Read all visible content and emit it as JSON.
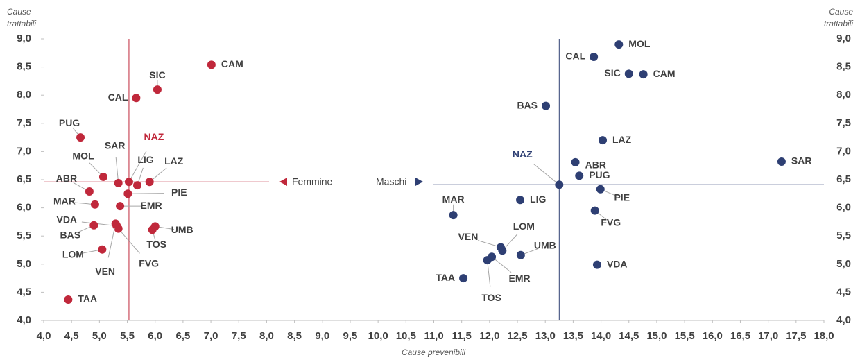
{
  "chart_data": {
    "type": "scatter",
    "xlabel": "Cause prevenibili",
    "ylabel": [
      "Cause",
      "trattabili"
    ],
    "y2label": [
      "Cause",
      "trattabili"
    ],
    "xlim": [
      4,
      18
    ],
    "ylim": [
      4,
      9
    ],
    "y2lim": [
      4,
      9
    ],
    "xticks": [
      {
        "value": 4,
        "label": "4,0"
      },
      {
        "value": 4.5,
        "label": "4,5"
      },
      {
        "value": 5,
        "label": "5,0"
      },
      {
        "value": 5.5,
        "label": "5,5"
      },
      {
        "value": 6,
        "label": "6,0"
      },
      {
        "value": 6.5,
        "label": "6,5"
      },
      {
        "value": 7,
        "label": "7,0"
      },
      {
        "value": 7.5,
        "label": "7,5"
      },
      {
        "value": 8,
        "label": "8,0"
      },
      {
        "value": 8.5,
        "label": "8,5"
      },
      {
        "value": 9,
        "label": "9,0"
      },
      {
        "value": 9.5,
        "label": "9,5"
      },
      {
        "value": 10,
        "label": "10,0"
      },
      {
        "value": 10.5,
        "label": "10,5"
      },
      {
        "value": 11,
        "label": "11,0"
      },
      {
        "value": 11.5,
        "label": "11,5"
      },
      {
        "value": 12,
        "label": "12,0"
      },
      {
        "value": 12.5,
        "label": "12,5"
      },
      {
        "value": 13,
        "label": "13,0"
      },
      {
        "value": 13.5,
        "label": "13,5"
      },
      {
        "value": 14,
        "label": "14,0"
      },
      {
        "value": 14.5,
        "label": "14,5"
      },
      {
        "value": 15,
        "label": "15,0"
      },
      {
        "value": 15.5,
        "label": "15,5"
      },
      {
        "value": 16,
        "label": "16,0"
      },
      {
        "value": 16.5,
        "label": "16,5"
      },
      {
        "value": 17,
        "label": "17,0"
      },
      {
        "value": 17.5,
        "label": "17,5"
      },
      {
        "value": 18,
        "label": "18,0"
      }
    ],
    "yticks": [
      {
        "value": 4,
        "label": "4,0"
      },
      {
        "value": 4.5,
        "label": "4,5"
      },
      {
        "value": 5,
        "label": "5,0"
      },
      {
        "value": 5.5,
        "label": "5,5"
      },
      {
        "value": 6,
        "label": "6,0"
      },
      {
        "value": 6.5,
        "label": "6,5"
      },
      {
        "value": 7,
        "label": "7,0"
      },
      {
        "value": 7.5,
        "label": "7,5"
      },
      {
        "value": 8,
        "label": "8,0"
      },
      {
        "value": 8.5,
        "label": "8,5"
      },
      {
        "value": 9,
        "label": "9,0"
      }
    ],
    "y2ticks": [
      {
        "value": 4,
        "label": "4,0"
      },
      {
        "value": 4.5,
        "label": "4,5"
      },
      {
        "value": 5,
        "label": "5,0"
      },
      {
        "value": 5.5,
        "label": "5,5"
      },
      {
        "value": 6,
        "label": "6,0"
      },
      {
        "value": 6.5,
        "label": "6,5"
      },
      {
        "value": 7,
        "label": "7,0"
      },
      {
        "value": 7.5,
        "label": "7,5"
      },
      {
        "value": 8,
        "label": "8,0"
      },
      {
        "value": 8.5,
        "label": "8,5"
      },
      {
        "value": 9,
        "label": "9,0"
      }
    ],
    "series": [
      {
        "name": "Femmine",
        "color": "#c0283b",
        "labels": [
          "CAM",
          "SIC",
          "CAL",
          "PUG",
          "NAZ",
          "SAR",
          "MOL",
          "LIG",
          "LAZ",
          "PIE",
          "ABR",
          "MAR",
          "EMR",
          "VDA",
          "BAS",
          "FVG",
          "TOS",
          "UMB",
          "LOM",
          "VEN",
          "TAA"
        ],
        "x": [
          7.01,
          6.04,
          5.66,
          4.66,
          5.53,
          5.34,
          5.07,
          5.68,
          5.9,
          5.51,
          4.82,
          4.92,
          5.37,
          5.31,
          4.9,
          5.34,
          5.95,
          6.0,
          5.05,
          5.29,
          4.44
        ],
        "y": [
          8.54,
          8.1,
          7.95,
          7.25,
          6.46,
          6.44,
          6.55,
          6.4,
          6.46,
          6.25,
          6.29,
          6.06,
          6.03,
          5.68,
          5.69,
          5.63,
          5.61,
          5.67,
          5.26,
          5.72,
          4.37
        ]
      },
      {
        "name": "Maschi",
        "color": "#2e3f73",
        "labels": [
          "MOL",
          "CAL",
          "SIC",
          "CAM",
          "BAS",
          "LAZ",
          "ABR",
          "PUG",
          "NAZ",
          "PIE",
          "SAR",
          "MAR",
          "LIG",
          "FVG",
          "LOM",
          "VEN",
          "UMB",
          "EMR",
          "TOS",
          "TAA",
          "VDA"
        ],
        "x": [
          14.32,
          13.87,
          14.5,
          14.76,
          13.01,
          14.03,
          13.54,
          13.61,
          13.25,
          13.99,
          17.24,
          11.35,
          12.55,
          13.89,
          12.23,
          12.2,
          12.56,
          12.04,
          11.96,
          11.53,
          13.93
        ],
        "y": [
          8.9,
          8.68,
          8.38,
          8.37,
          7.81,
          7.2,
          6.81,
          6.57,
          6.41,
          6.33,
          6.82,
          5.87,
          6.14,
          5.95,
          5.24,
          5.3,
          5.16,
          5.13,
          5.07,
          4.75,
          4.99
        ]
      }
    ]
  }
}
